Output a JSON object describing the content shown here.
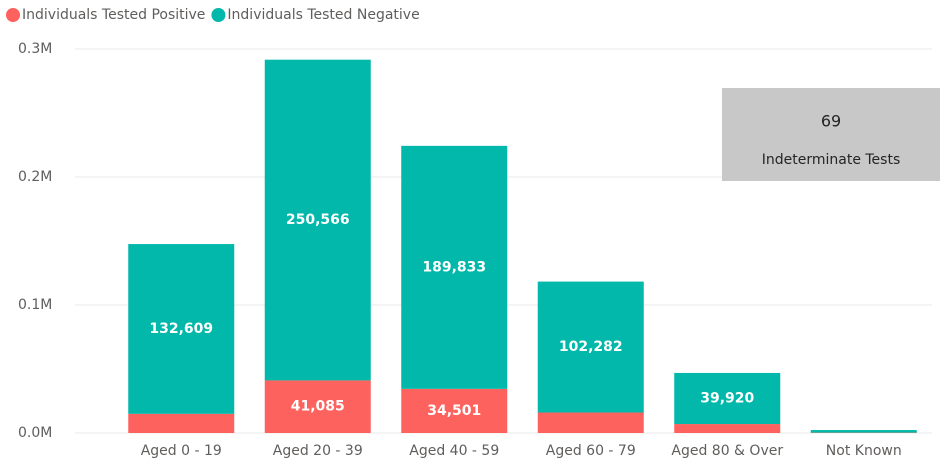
{
  "chart_data": {
    "type": "stacked_bar",
    "categories": [
      "Aged 0 - 19",
      "Aged 20 - 39",
      "Aged 40 - 59",
      "Aged 60 - 79",
      "Aged 80 & Over",
      "Not Known"
    ],
    "series": [
      {
        "name": "Individuals Tested Positive",
        "color": "#fd625e",
        "values": [
          15000,
          41085,
          34501,
          16000,
          7000,
          300
        ],
        "value_labels": [
          null,
          "41,085",
          "34,501",
          null,
          null,
          null
        ]
      },
      {
        "name": "Individuals Tested Negative",
        "color": "#01b8aa",
        "values": [
          132609,
          250566,
          189833,
          102282,
          39920,
          2000
        ],
        "value_labels": [
          "132,609",
          "250,566",
          "189,833",
          "102,282",
          "39,920",
          null
        ]
      }
    ],
    "ylim": [
      0,
      300000
    ],
    "yticks": [
      {
        "value": 0,
        "label": "0.0M"
      },
      {
        "value": 100000,
        "label": "0.1M"
      },
      {
        "value": 200000,
        "label": "0.2M"
      },
      {
        "value": 300000,
        "label": "0.3M"
      }
    ],
    "grid": true,
    "legend": "top-left"
  },
  "card": {
    "value": "69",
    "label": "Indeterminate Tests"
  }
}
